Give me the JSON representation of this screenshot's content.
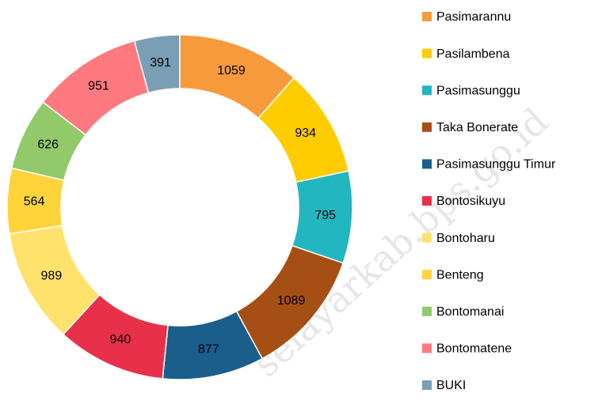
{
  "chart_data": {
    "type": "donut",
    "categories": [
      "Pasimarannu",
      "Pasilambena",
      "Pasimasunggu",
      "Taka Bonerate",
      "Pasimasunggu Timur",
      "Bontosikuyu",
      "Bontoharu",
      "Benteng",
      "Bontomanai",
      "Bontomatene",
      "BUKI"
    ],
    "values": [
      1059,
      934,
      795,
      1089,
      877,
      940,
      989,
      564,
      626,
      951,
      391
    ],
    "colors": [
      "#f79a3b",
      "#ffcc00",
      "#22b7c0",
      "#a64f14",
      "#1a5e8c",
      "#e8304a",
      "#ffe26b",
      "#ffd43b",
      "#92c96b",
      "#ff7a80",
      "#7a9fb5"
    ],
    "watermark": "selayarkab.bps.go.id"
  }
}
